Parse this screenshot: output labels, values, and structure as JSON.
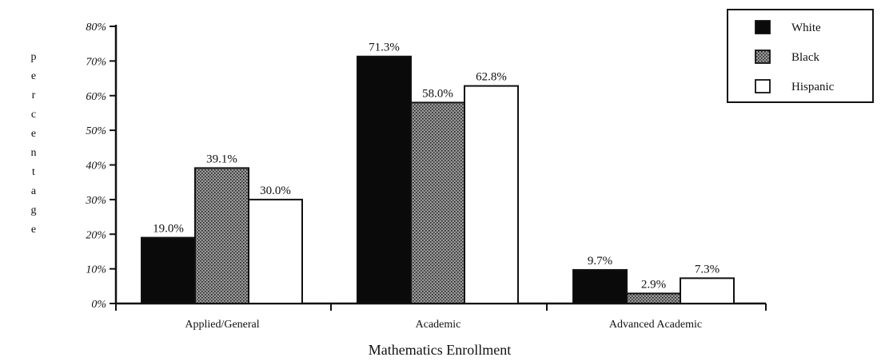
{
  "chart_data": {
    "type": "bar",
    "xlabel": "Mathematics Enrollment",
    "ylabel": "percentage",
    "ylim": [
      0,
      80
    ],
    "yticks": [
      "0%",
      "10%",
      "20%",
      "30%",
      "40%",
      "50%",
      "60%",
      "70%",
      "80%"
    ],
    "categories": [
      "Applied/General",
      "Academic",
      "Advanced Academic"
    ],
    "series": [
      {
        "name": "White",
        "color": "#0a0a0a",
        "pattern": "solid",
        "values": [
          19.0,
          71.3,
          9.7
        ],
        "labels": [
          "19.0%",
          "71.3%",
          "9.7%"
        ]
      },
      {
        "name": "Black",
        "color": "#777777",
        "pattern": "dotted",
        "values": [
          39.1,
          58.0,
          2.9
        ],
        "labels": [
          "39.1%",
          "58.0%",
          "2.9%"
        ]
      },
      {
        "name": "Hispanic",
        "color": "#ffffff",
        "pattern": "open",
        "values": [
          30.0,
          62.8,
          7.3
        ],
        "labels": [
          "30.0%",
          "62.8%",
          "7.3%"
        ]
      }
    ],
    "legend_position": "top-right",
    "grid": false
  }
}
